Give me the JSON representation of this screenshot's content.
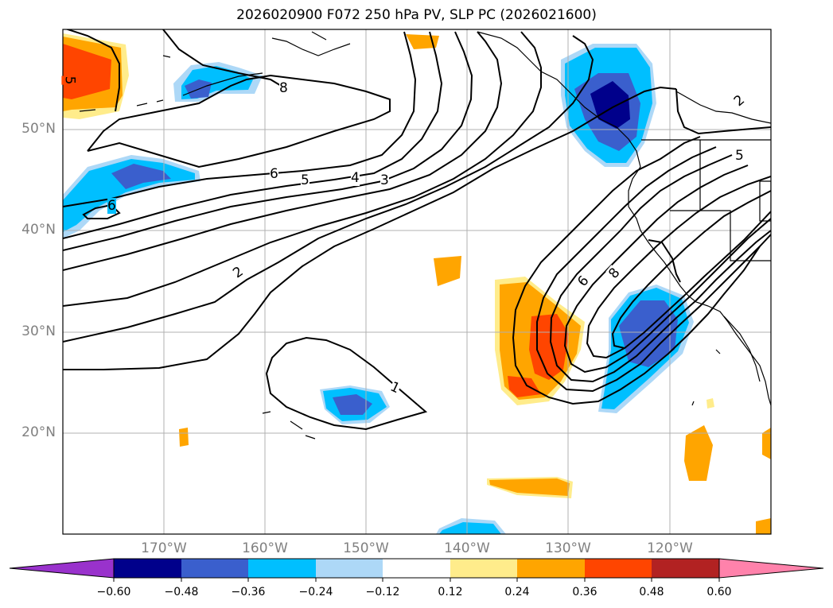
{
  "title": "2026020900 F072 250 hPa PV, SLP PC (2026021600)",
  "lat_labels": [
    "50°N",
    "40°N",
    "30°N",
    "20°N"
  ],
  "lon_labels": [
    "170°W",
    "160°W",
    "150°W",
    "140°W",
    "130°W",
    "120°W"
  ],
  "contour_labels": [
    "5",
    "8",
    "6",
    "5",
    "4",
    "3",
    "6",
    "2",
    "1",
    "6",
    "8",
    "5",
    "2"
  ],
  "colorbar": {
    "ticks": [
      "−0.60",
      "−0.48",
      "−0.36",
      "−0.24",
      "−0.12",
      "0.12",
      "0.24",
      "0.36",
      "0.48",
      "0.60"
    ],
    "colors": [
      "#9932cc",
      "#00008b",
      "#3a5fcd",
      "#00bfff",
      "#add8f7",
      "#ffffff",
      "#ffec8b",
      "#ffa500",
      "#ff4500",
      "#b22222",
      "#ff82ab"
    ]
  }
}
